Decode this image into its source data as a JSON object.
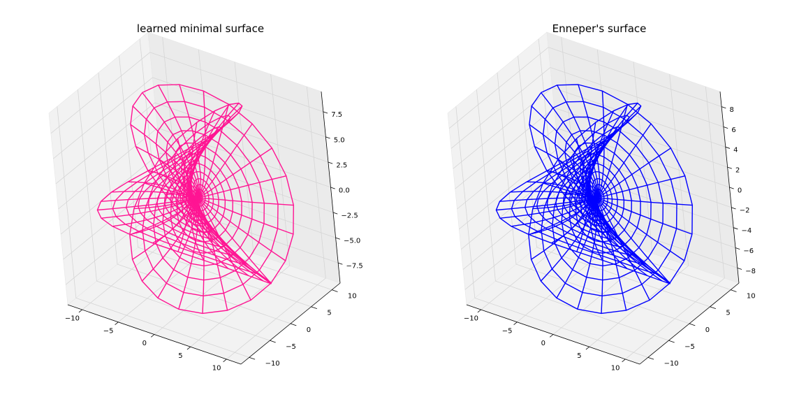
{
  "chart_data": [
    {
      "type": "wireframe3d",
      "title": "learned minimal surface",
      "surface": "enneper",
      "color": "#ff1493",
      "xlim": [
        -12,
        12
      ],
      "ylim": [
        -12,
        12
      ],
      "zlim": [
        -9.5,
        9.5
      ],
      "x_ticks": [
        "−10",
        "−5",
        "0",
        "5",
        "10"
      ],
      "y_ticks": [
        "−10",
        "−5",
        "0",
        "5",
        "10"
      ],
      "z_ticks": [
        "7.5",
        "5.0",
        "2.5",
        "0.0",
        "−2.5",
        "−5.0",
        "−7.5"
      ],
      "grid": true
    },
    {
      "type": "wireframe3d",
      "title": "Enneper's surface",
      "surface": "enneper",
      "color": "#0000ff",
      "xlim": [
        -12,
        12
      ],
      "ylim": [
        -12,
        12
      ],
      "zlim": [
        -9.5,
        9.5
      ],
      "x_ticks": [
        "−10",
        "−5",
        "0",
        "5",
        "10"
      ],
      "y_ticks": [
        "−10",
        "−5",
        "0",
        "5",
        "10"
      ],
      "z_ticks": [
        "8",
        "6",
        "4",
        "2",
        "0",
        "−2",
        "−4",
        "−6",
        "−8"
      ],
      "grid": true
    }
  ]
}
